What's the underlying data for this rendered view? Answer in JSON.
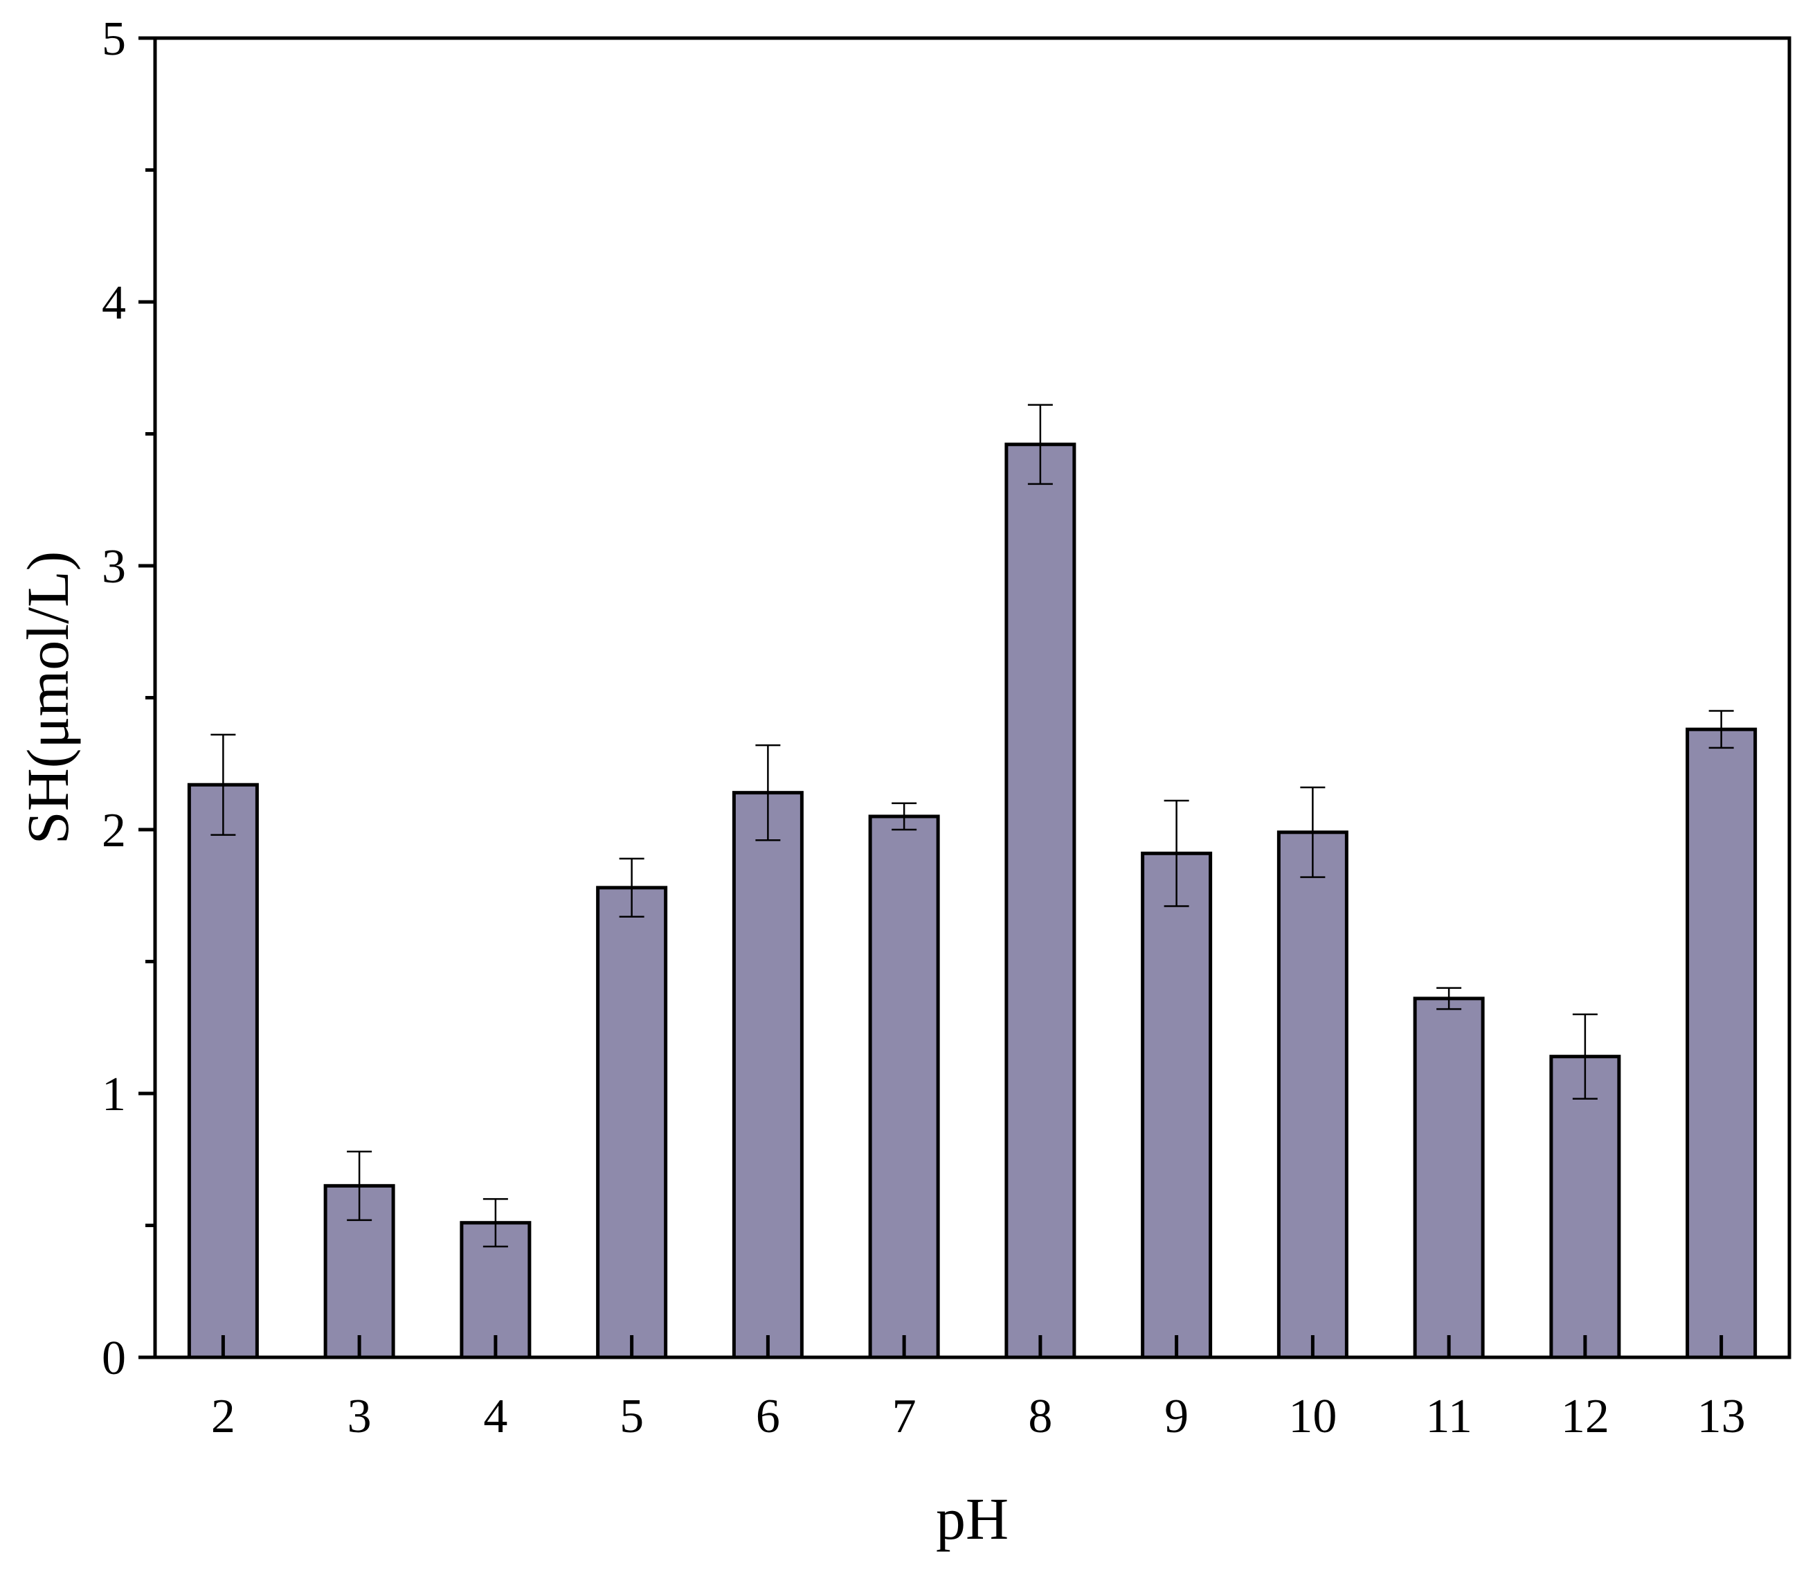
{
  "chart_data": {
    "type": "bar",
    "title": "",
    "xlabel": "pH",
    "ylabel": "SH(μmol/L)",
    "categories": [
      "2",
      "3",
      "4",
      "5",
      "6",
      "7",
      "8",
      "9",
      "10",
      "11",
      "12",
      "13"
    ],
    "values": [
      2.17,
      0.65,
      0.51,
      1.78,
      2.14,
      2.05,
      3.46,
      1.91,
      1.99,
      1.36,
      1.14,
      2.38
    ],
    "errors": [
      0.19,
      0.13,
      0.09,
      0.11,
      0.18,
      0.05,
      0.15,
      0.2,
      0.17,
      0.04,
      0.16,
      0.07
    ],
    "ylim": [
      0,
      5
    ],
    "yticks": [
      0,
      1,
      2,
      3,
      4,
      5
    ],
    "grid": false,
    "legend": "none",
    "colors": {
      "bar_fill": "#8e8aab",
      "bar_stroke": "#000000",
      "axis": "#000000",
      "errorbar": "#000000"
    }
  }
}
